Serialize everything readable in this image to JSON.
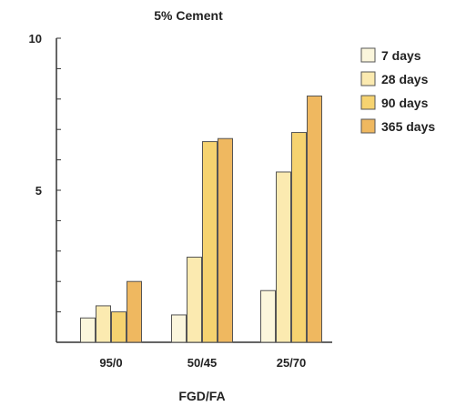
{
  "chart_data": {
    "type": "bar",
    "title": "5% Cement",
    "xlabel": "FGD/FA",
    "ylabel": "",
    "ylim": [
      0,
      10
    ],
    "yticks": [
      0,
      1,
      2,
      3,
      4,
      5,
      6,
      7,
      8,
      9,
      10
    ],
    "ytick_labels": [
      "5",
      "10"
    ],
    "categories": [
      "95/0",
      "50/45",
      "25/70"
    ],
    "series": [
      {
        "name": "7 days",
        "color": "#fbf6dc",
        "values": [
          0.8,
          0.9,
          1.7
        ]
      },
      {
        "name": "28 days",
        "color": "#fbeab0",
        "values": [
          1.2,
          2.8,
          5.6
        ]
      },
      {
        "name": "90 days",
        "color": "#f6d370",
        "values": [
          1.0,
          6.6,
          6.9
        ]
      },
      {
        "name": "365 days",
        "color": "#efb860",
        "values": [
          2.0,
          6.7,
          8.1
        ]
      }
    ],
    "legend_position": "right",
    "grid": false
  }
}
